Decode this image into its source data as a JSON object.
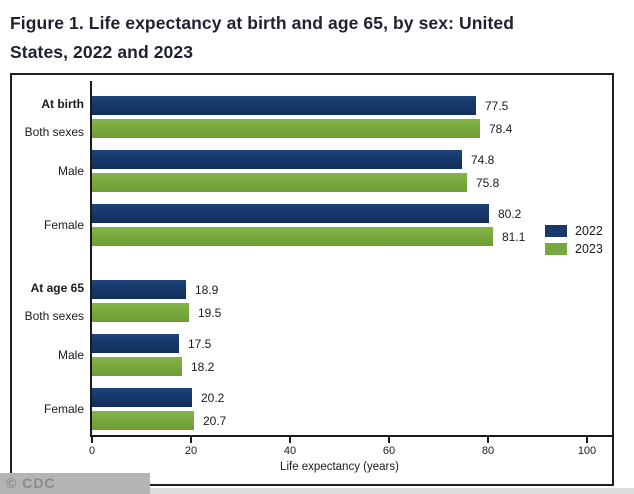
{
  "title": {
    "full": "Figure 1. Life expectancy at birth and age 65, by sex: United States, 2022 and 2023",
    "line1": "Figure 1. Life expectancy at birth and age 65, by sex: United",
    "line2": "States, 2022 and 2023"
  },
  "watermark": "© CDC",
  "chart_data": {
    "type": "bar",
    "orientation": "horizontal",
    "title": "Figure 1. Life expectancy at birth and age 65, by sex: United States, 2022 and 2023",
    "xlabel": "Life expectancy (years)",
    "xlim": [
      0,
      100
    ],
    "xticks": [
      0,
      20,
      40,
      60,
      80,
      100
    ],
    "grid": false,
    "legend_position": "center-right",
    "series": [
      "2022",
      "2023"
    ],
    "legend": [
      {
        "name": "2022",
        "color": "#17386b"
      },
      {
        "name": "2023",
        "color": "#77a83d"
      }
    ],
    "groups": [
      {
        "label": "At birth",
        "categories": [
          {
            "label": "Both sexes",
            "values": [
              77.5,
              78.4
            ]
          },
          {
            "label": "Male",
            "values": [
              74.8,
              75.8
            ]
          },
          {
            "label": "Female",
            "values": [
              80.2,
              81.1
            ]
          }
        ]
      },
      {
        "label": "At age 65",
        "categories": [
          {
            "label": "Both sexes",
            "values": [
              18.9,
              19.5
            ]
          },
          {
            "label": "Male",
            "values": [
              17.5,
              18.2
            ]
          },
          {
            "label": "Female",
            "values": [
              20.2,
              20.7
            ]
          }
        ]
      }
    ]
  }
}
